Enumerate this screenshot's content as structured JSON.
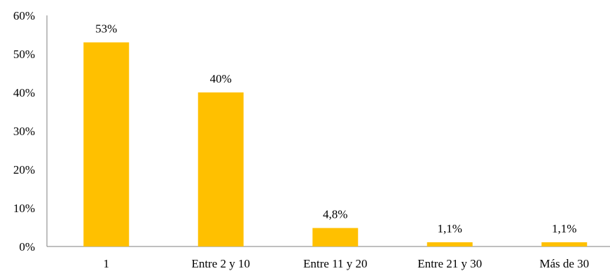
{
  "chart_data": {
    "type": "bar",
    "categories": [
      "1",
      "Entre 2 y 10",
      "Entre 11 y 20",
      "Entre 21 y 30",
      "Más de 30"
    ],
    "values": [
      53,
      40,
      4.8,
      1.1,
      1.1
    ],
    "data_labels": [
      "53%",
      "40%",
      "4,8%",
      "1,1%",
      "1,1%"
    ],
    "y_ticks": [
      "0%",
      "10%",
      "20%",
      "30%",
      "40%",
      "50%",
      "60%"
    ],
    "ylim": [
      0,
      60
    ],
    "title": "",
    "xlabel": "",
    "ylabel": "",
    "grid": false,
    "legend": "none",
    "bar_color": "#FFC000"
  }
}
